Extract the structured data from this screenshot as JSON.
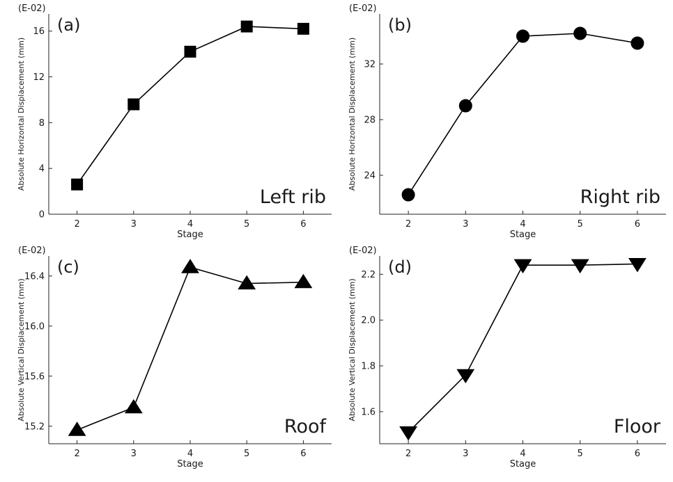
{
  "chart_data": [
    {
      "type": "line",
      "panel_label": "(a)",
      "annotation": "Left rib",
      "exponent_label": "(E-02)",
      "xlabel": "Stage",
      "ylabel": "Absolute Horizontal Displacement (mm)",
      "x": [
        2,
        3,
        4,
        5,
        6
      ],
      "values": [
        2.6,
        9.6,
        14.2,
        16.4,
        16.2
      ],
      "marker": "square",
      "xlim": [
        1.5,
        6.5
      ],
      "ylim": [
        0,
        17.5
      ],
      "yticks": [
        0,
        4,
        8,
        12,
        16
      ],
      "ytick_labels": [
        "0",
        "4",
        "8",
        "12",
        "16"
      ],
      "xticks": [
        2,
        3,
        4,
        5,
        6
      ],
      "xtick_labels": [
        "2",
        "3",
        "4",
        "5",
        "6"
      ]
    },
    {
      "type": "line",
      "panel_label": "(b)",
      "annotation": "Right rib",
      "exponent_label": "(E-02)",
      "xlabel": "Stage",
      "ylabel": "Absolute Horizontal Displacement (mm)",
      "x": [
        2,
        3,
        4,
        5,
        6
      ],
      "values": [
        22.6,
        29.0,
        34.0,
        34.2,
        33.5
      ],
      "marker": "circle",
      "xlim": [
        1.5,
        6.5
      ],
      "ylim": [
        21.2,
        35.6
      ],
      "yticks": [
        24,
        28,
        32
      ],
      "ytick_labels": [
        "24",
        "28",
        "32"
      ],
      "xticks": [
        2,
        3,
        4,
        5,
        6
      ],
      "xtick_labels": [
        "2",
        "3",
        "4",
        "5",
        "6"
      ]
    },
    {
      "type": "line",
      "panel_label": "(c)",
      "annotation": "Roof",
      "exponent_label": "(E-02)",
      "xlabel": "Stage",
      "ylabel": "Absolute Vertical Displacement (mm)",
      "x": [
        2,
        3,
        4,
        5,
        6
      ],
      "values": [
        15.17,
        15.35,
        16.47,
        16.34,
        16.35
      ],
      "marker": "triangle-up",
      "xlim": [
        1.5,
        6.5
      ],
      "ylim": [
        15.06,
        16.56
      ],
      "yticks": [
        15.2,
        15.6,
        16.0,
        16.4
      ],
      "ytick_labels": [
        "15.2",
        "15.6",
        "16.0",
        "16.4"
      ],
      "xticks": [
        2,
        3,
        4,
        5,
        6
      ],
      "xtick_labels": [
        "2",
        "3",
        "4",
        "5",
        "6"
      ]
    },
    {
      "type": "line",
      "panel_label": "(d)",
      "annotation": "Floor",
      "exponent_label": "(E-02)",
      "xlabel": "Stage",
      "ylabel": "Absolute Vertical Displacement (mm)",
      "x": [
        2,
        3,
        4,
        5,
        6
      ],
      "values": [
        1.51,
        1.76,
        2.24,
        2.24,
        2.245
      ],
      "marker": "triangle-down",
      "xlim": [
        1.5,
        6.5
      ],
      "ylim": [
        1.46,
        2.28
      ],
      "yticks": [
        1.6,
        1.8,
        2.0,
        2.2
      ],
      "ytick_labels": [
        "1.6",
        "1.8",
        "2.0",
        "2.2"
      ],
      "xticks": [
        2,
        3,
        4,
        5,
        6
      ],
      "xtick_labels": [
        "2",
        "3",
        "4",
        "5",
        "6"
      ]
    }
  ]
}
